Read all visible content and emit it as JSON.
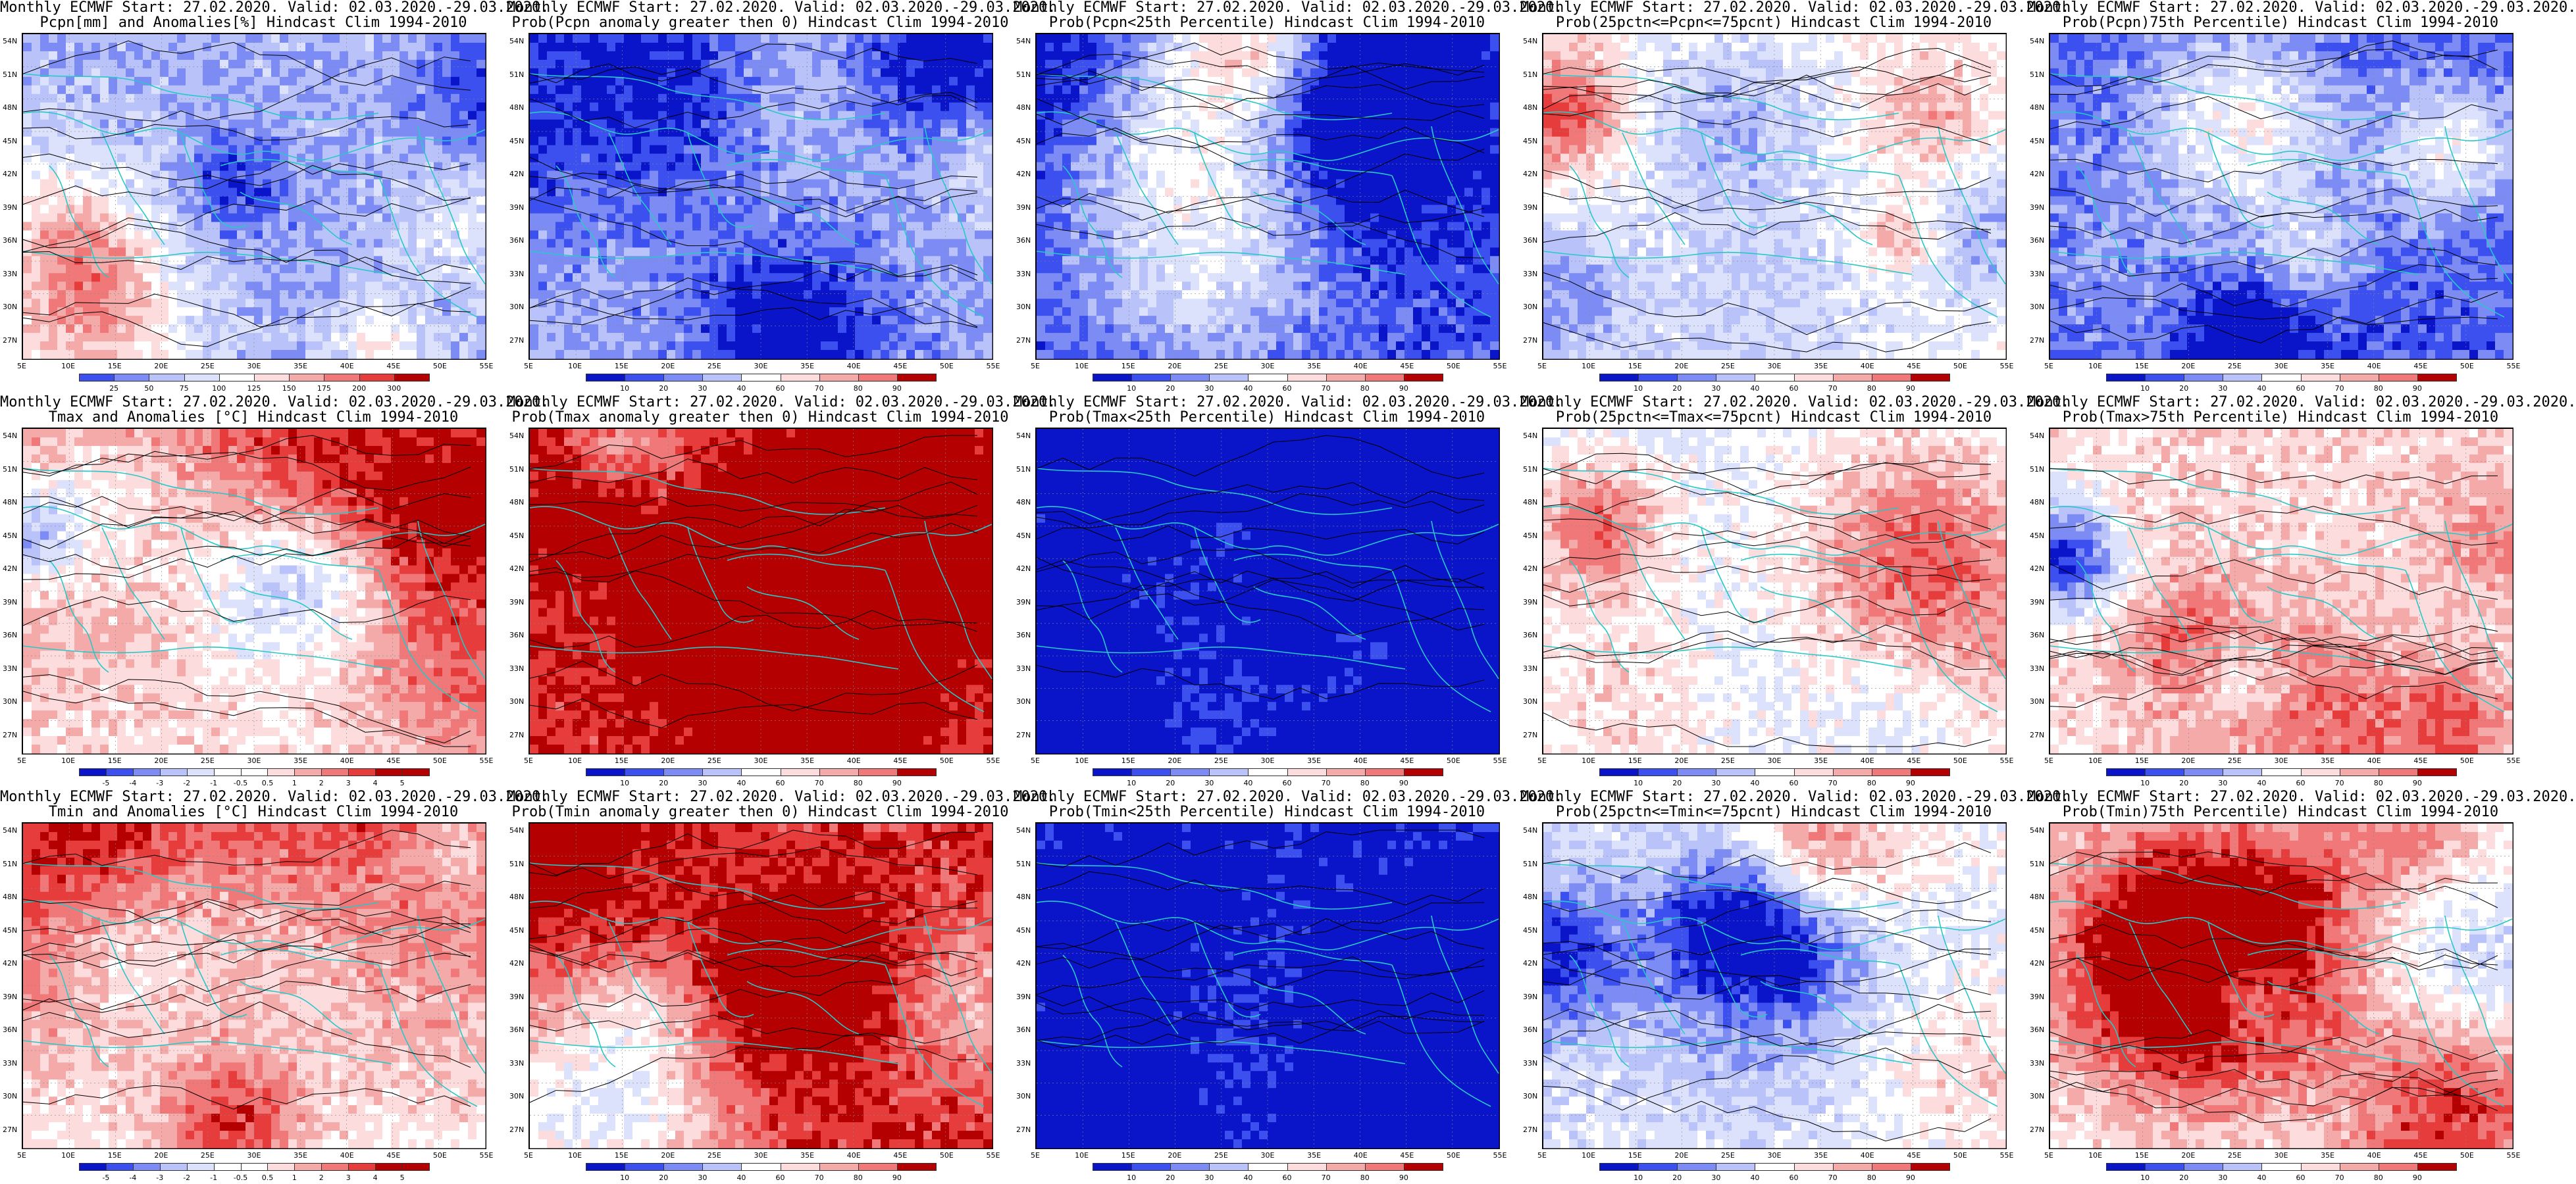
{
  "colors": {
    "deep_blue": "#0a14c8",
    "blue": "#3c50f0",
    "mid_blue": "#7d8cf5",
    "light_blue": "#b9c3fa",
    "pale_blue": "#dce1fc",
    "white": "#ffffff",
    "pale_red": "#fcdcdc",
    "light_red": "#f5aaaa",
    "mid_red": "#f07878",
    "red": "#e63c3c",
    "deep_red": "#b40000",
    "coast": "#28c8c8",
    "contour": "#000000"
  },
  "map": {
    "lat_labels": [
      "54N",
      "51N",
      "48N",
      "45N",
      "42N",
      "39N",
      "36N",
      "33N",
      "30N",
      "27N"
    ],
    "lon_labels": [
      "5E",
      "10E",
      "15E",
      "20E",
      "25E",
      "30E",
      "35E",
      "40E",
      "45E",
      "50E",
      "55E"
    ]
  },
  "colorbars": {
    "precip": [
      "25",
      "50",
      "75",
      "100",
      "125",
      "150",
      "175",
      "200",
      "300"
    ],
    "prob": [
      "10",
      "20",
      "30",
      "40",
      "60",
      "70",
      "80",
      "90"
    ],
    "anom": [
      "-5",
      "-4",
      "-3",
      "-2",
      "-1",
      "-0.5",
      "0.5",
      "1",
      "2",
      "3",
      "4",
      "5"
    ]
  },
  "panels": [
    {
      "line1": "Monthly ECMWF Start: 27.02.2020. Valid: 02.03.2020.-29.03.2020.",
      "line2": "Pcpn[mm] and Anomalies[%] Hindcast Clim 1994-2010",
      "scheme": "precip",
      "bar": "precip",
      "mean": -0.45
    },
    {
      "line1": "Monthly ECMWF Start: 27.02.2020. Valid: 02.03.2020.-29.03.2020.",
      "line2": "Prob(Pcpn anomaly greater then 0) Hindcast Clim 1994-2010",
      "scheme": "prob",
      "bar": "prob",
      "mean": -0.45
    },
    {
      "line1": "Monthly ECMWF Start: 27.02.2020. Valid: 02.03.2020.-29.03.2020.",
      "line2": "Prob(Pcpn<25th Percentile) Hindcast Clim 1994-2010",
      "scheme": "prob",
      "bar": "prob",
      "mean": -0.8
    },
    {
      "line1": "Monthly ECMWF Start: 27.02.2020. Valid: 02.03.2020.-29.03.2020.",
      "line2": "Prob(25pctn<=Pcpn<=75pcnt) Hindcast Clim 1994-2010",
      "scheme": "prob",
      "bar": "prob",
      "mean": 0.05
    },
    {
      "line1": "Monthly ECMWF Start: 27.02.2020. Valid: 02.03.2020.-29.03.2020.",
      "line2": "Prob(Pcpn)75th Percentile) Hindcast Clim 1994-2010",
      "scheme": "prob",
      "bar": "prob",
      "mean": -0.75
    },
    {
      "line1": "Monthly ECMWF Start: 27.02.2020. Valid: 02.03.2020.-29.03.2020.",
      "line2": "Tmax and Anomalies [°C] Hindcast Clim 1994-2010",
      "scheme": "anom",
      "bar": "anom",
      "mean": 0.5
    },
    {
      "line1": "Monthly ECMWF Start: 27.02.2020. Valid: 02.03.2020.-29.03.2020.",
      "line2": "Prob(Tmax anomaly greater then 0) Hindcast Clim 1994-2010",
      "scheme": "prob",
      "bar": "prob",
      "mean": 0.85
    },
    {
      "line1": "Monthly ECMWF Start: 27.02.2020. Valid: 02.03.2020.-29.03.2020.",
      "line2": "Prob(Tmax<25th Percentile) Hindcast Clim 1994-2010",
      "scheme": "prob",
      "bar": "prob",
      "mean": -0.95
    },
    {
      "line1": "Monthly ECMWF Start: 27.02.2020. Valid: 02.03.2020.-29.03.2020.",
      "line2": "Prob(25pctn<=Tmax<=75pcnt) Hindcast Clim 1994-2010",
      "scheme": "prob",
      "bar": "prob",
      "mean": -0.1
    },
    {
      "line1": "Monthly ECMWF Start: 27.02.2020. Valid: 02.03.2020.-29.03.2020.",
      "line2": "Prob(Tmax>75th Percentile) Hindcast Clim 1994-2010",
      "scheme": "prob",
      "bar": "prob",
      "mean": 0.2
    },
    {
      "line1": "Monthly ECMWF Start: 27.02.2020. Valid: 02.03.2020.-29.03.2020.",
      "line2": "Tmin and Anomalies [°C] Hindcast Clim 1994-2010",
      "scheme": "anom",
      "bar": "anom",
      "mean": 0.45
    },
    {
      "line1": "Monthly ECMWF Start: 27.02.2020. Valid: 02.03.2020.-29.03.2020.",
      "line2": "Prob(Tmin anomaly greater then 0) Hindcast Clim 1994-2010",
      "scheme": "prob",
      "bar": "prob",
      "mean": 0.85
    },
    {
      "line1": "Monthly ECMWF Start: 27.02.2020. Valid: 02.03.2020.-29.03.2020.",
      "line2": "Prob(Tmin<25th Percentile) Hindcast Clim 1994-2010",
      "scheme": "prob",
      "bar": "prob",
      "mean": -0.95
    },
    {
      "line1": "Monthly ECMWF Start: 27.02.2020. Valid: 02.03.2020.-29.03.2020.",
      "line2": "Prob(25pctn<=Tmin<=75pcnt) Hindcast Clim 1994-2010",
      "scheme": "prob",
      "bar": "prob",
      "mean": -0.15
    },
    {
      "line1": "Monthly ECMWF Start: 27.02.2020. Valid: 02.03.2020.-29.03.2020.",
      "line2": "Prob(Tmin)75th Percentile) Hindcast Clim 1994-2010",
      "scheme": "prob",
      "bar": "prob",
      "mean": 0.1
    }
  ]
}
